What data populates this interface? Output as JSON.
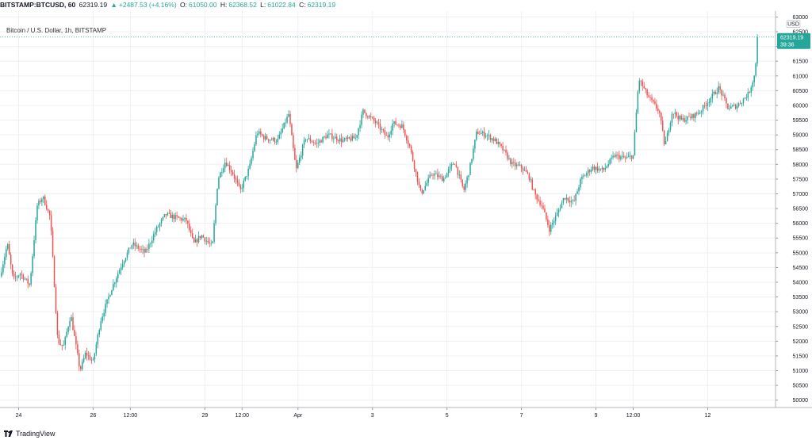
{
  "header": {
    "symbol": "BITSTAMP:BTCUSD, 60",
    "last": "62319.19",
    "arrow": "▲",
    "change": "+2487.53 (+4.16%)",
    "o_label": "O:",
    "o_value": "61050.00",
    "h_label": "H:",
    "h_value": "62368.52",
    "l_label": "L:",
    "l_value": "61022.84",
    "c_label": "C:",
    "c_value": "62319.19"
  },
  "chart_title": "Bitcoin / U.S. Dollar, 1h, BITSTAMP",
  "footer": {
    "brand": "TradingView"
  },
  "colors": {
    "up": "#26a69a",
    "down": "#ef5350",
    "grid": "#eef0f3",
    "last_price_tag": "#26a69a"
  },
  "chart_data": {
    "type": "candlestick",
    "currency_label": "USD",
    "ylim": [
      49750,
      63200
    ],
    "y_ticks": [
      "50000",
      "50500",
      "51000",
      "51500",
      "52000",
      "52500",
      "53000",
      "53500",
      "54000",
      "54500",
      "55000",
      "55500",
      "56000",
      "56500",
      "57000",
      "57500",
      "58000",
      "58500",
      "59000",
      "59500",
      "60000",
      "60500",
      "61000",
      "61500",
      "62000",
      "62500",
      "63000"
    ],
    "x_ticks": [
      {
        "label": "24",
        "pos": 0.5
      },
      {
        "label": "26",
        "pos": 2.5
      },
      {
        "label": "12:00",
        "pos": 3.5
      },
      {
        "label": "29",
        "pos": 5.5
      },
      {
        "label": "12:00",
        "pos": 6.5
      },
      {
        "label": "Apr",
        "pos": 8.0
      },
      {
        "label": "3",
        "pos": 10.0
      },
      {
        "label": "5",
        "pos": 12.0
      },
      {
        "label": "7",
        "pos": 14.0
      },
      {
        "label": "9",
        "pos": 16.0
      },
      {
        "label": "12:00",
        "pos": 17.0
      },
      {
        "label": "12",
        "pos": 19.0
      }
    ],
    "x_range": [
      0,
      20.8
    ],
    "last_price": {
      "value": 62319.19,
      "label": "62319.19",
      "countdown": "39:36"
    },
    "grid": true,
    "path": [
      {
        "t": 0.0,
        "p": 54200
      },
      {
        "t": 0.2,
        "p": 55300
      },
      {
        "t": 0.35,
        "p": 54100
      },
      {
        "t": 0.55,
        "p": 54300
      },
      {
        "t": 0.8,
        "p": 53900
      },
      {
        "t": 1.0,
        "p": 56600
      },
      {
        "t": 1.15,
        "p": 56900
      },
      {
        "t": 1.35,
        "p": 56200
      },
      {
        "t": 1.55,
        "p": 52000
      },
      {
        "t": 1.7,
        "p": 51800
      },
      {
        "t": 1.9,
        "p": 52900
      },
      {
        "t": 2.15,
        "p": 51000
      },
      {
        "t": 2.3,
        "p": 51600
      },
      {
        "t": 2.5,
        "p": 51300
      },
      {
        "t": 2.7,
        "p": 52700
      },
      {
        "t": 3.0,
        "p": 53800
      },
      {
        "t": 3.3,
        "p": 54700
      },
      {
        "t": 3.55,
        "p": 55300
      },
      {
        "t": 3.9,
        "p": 55000
      },
      {
        "t": 4.2,
        "p": 55800
      },
      {
        "t": 4.45,
        "p": 56300
      },
      {
        "t": 4.7,
        "p": 56200
      },
      {
        "t": 5.0,
        "p": 56100
      },
      {
        "t": 5.2,
        "p": 55300
      },
      {
        "t": 5.4,
        "p": 55600
      },
      {
        "t": 5.7,
        "p": 55200
      },
      {
        "t": 5.85,
        "p": 57500
      },
      {
        "t": 6.05,
        "p": 58100
      },
      {
        "t": 6.25,
        "p": 57700
      },
      {
        "t": 6.45,
        "p": 57100
      },
      {
        "t": 6.7,
        "p": 57900
      },
      {
        "t": 6.9,
        "p": 59100
      },
      {
        "t": 7.1,
        "p": 58900
      },
      {
        "t": 7.45,
        "p": 58800
      },
      {
        "t": 7.75,
        "p": 59700
      },
      {
        "t": 7.95,
        "p": 57800
      },
      {
        "t": 8.2,
        "p": 58900
      },
      {
        "t": 8.5,
        "p": 58700
      },
      {
        "t": 8.8,
        "p": 59000
      },
      {
        "t": 9.2,
        "p": 58800
      },
      {
        "t": 9.55,
        "p": 58900
      },
      {
        "t": 9.75,
        "p": 59800
      },
      {
        "t": 10.1,
        "p": 59400
      },
      {
        "t": 10.4,
        "p": 58900
      },
      {
        "t": 10.55,
        "p": 59400
      },
      {
        "t": 10.8,
        "p": 59300
      },
      {
        "t": 11.0,
        "p": 58600
      },
      {
        "t": 11.3,
        "p": 57000
      },
      {
        "t": 11.6,
        "p": 57700
      },
      {
        "t": 11.9,
        "p": 57500
      },
      {
        "t": 12.2,
        "p": 58100
      },
      {
        "t": 12.45,
        "p": 57100
      },
      {
        "t": 12.6,
        "p": 57800
      },
      {
        "t": 12.8,
        "p": 59100
      },
      {
        "t": 13.05,
        "p": 59000
      },
      {
        "t": 13.3,
        "p": 58800
      },
      {
        "t": 13.5,
        "p": 58500
      },
      {
        "t": 13.75,
        "p": 58000
      },
      {
        "t": 14.0,
        "p": 57900
      },
      {
        "t": 14.2,
        "p": 57600
      },
      {
        "t": 14.35,
        "p": 57000
      },
      {
        "t": 14.55,
        "p": 56600
      },
      {
        "t": 14.75,
        "p": 55800
      },
      {
        "t": 14.95,
        "p": 56300
      },
      {
        "t": 15.15,
        "p": 56900
      },
      {
        "t": 15.4,
        "p": 56700
      },
      {
        "t": 15.6,
        "p": 57500
      },
      {
        "t": 15.9,
        "p": 57900
      },
      {
        "t": 16.2,
        "p": 57800
      },
      {
        "t": 16.5,
        "p": 58300
      },
      {
        "t": 16.8,
        "p": 58200
      },
      {
        "t": 17.0,
        "p": 58300
      },
      {
        "t": 17.15,
        "p": 60900
      },
      {
        "t": 17.4,
        "p": 60300
      },
      {
        "t": 17.7,
        "p": 59800
      },
      {
        "t": 17.85,
        "p": 58600
      },
      {
        "t": 18.05,
        "p": 59800
      },
      {
        "t": 18.3,
        "p": 59500
      },
      {
        "t": 18.55,
        "p": 59600
      },
      {
        "t": 18.8,
        "p": 59800
      },
      {
        "t": 19.05,
        "p": 60200
      },
      {
        "t": 19.3,
        "p": 60600
      },
      {
        "t": 19.55,
        "p": 59900
      },
      {
        "t": 19.8,
        "p": 60000
      },
      {
        "t": 20.1,
        "p": 60400
      },
      {
        "t": 20.25,
        "p": 61000
      },
      {
        "t": 20.37,
        "p": 62320
      }
    ]
  }
}
